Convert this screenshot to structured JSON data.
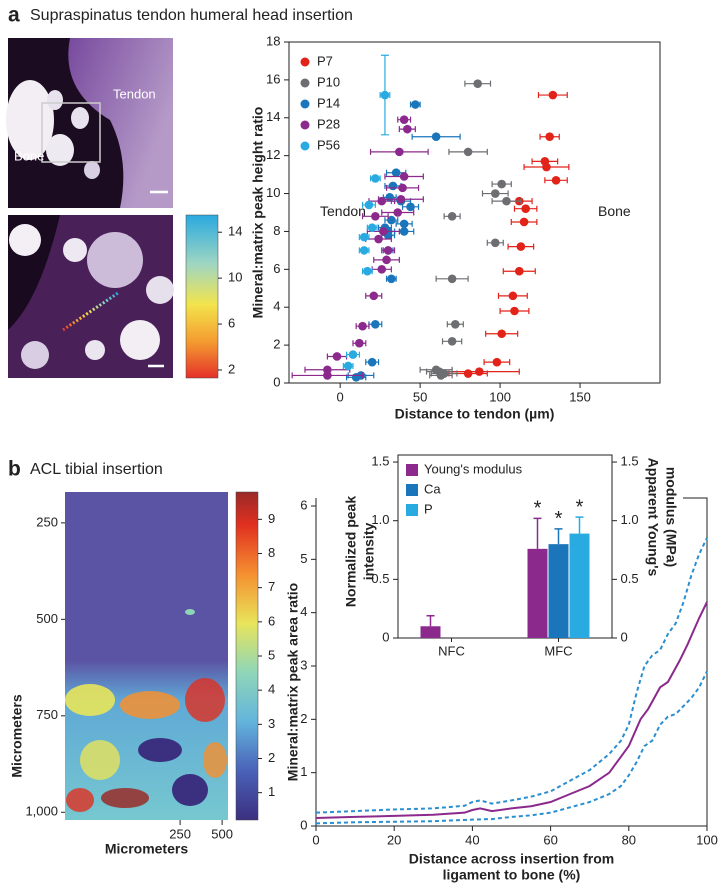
{
  "panels": [
    {
      "label": "a",
      "title": "Supraspinatus tendon humeral head insertion",
      "image_labels": [
        "Tendon",
        "Bone"
      ]
    },
    {
      "label": "b",
      "title": "ACL tibial insertion"
    }
  ],
  "chart_data": [
    {
      "type": "scatter",
      "xlabel": "Distance to tendon (µm)",
      "ylabel": "Mineral:matrix peak height ratio",
      "xlim": [
        -32,
        200
      ],
      "ylim": [
        0,
        18
      ],
      "xticks": [
        0,
        50,
        100,
        150
      ],
      "yticks": [
        0,
        2,
        4,
        6,
        8,
        10,
        12,
        14,
        16,
        18
      ],
      "legend": "upper left",
      "annotations": [
        "Tendon",
        "Bone"
      ],
      "series": [
        {
          "name": "P7",
          "color": "#e2231a",
          "x": [
            133,
            131,
            128,
            129,
            135,
            112,
            116,
            115,
            113,
            112,
            108,
            109,
            101,
            98,
            87,
            80
          ],
          "values": [
            15.2,
            13.0,
            11.7,
            11.4,
            10.7,
            9.6,
            9.2,
            8.5,
            7.2,
            5.9,
            4.6,
            3.8,
            2.6,
            1.1,
            0.6,
            0.5
          ],
          "xerr": [
            9,
            6,
            8,
            14,
            7,
            8,
            7,
            8,
            8,
            10,
            9,
            9,
            10,
            8,
            25,
            12
          ]
        },
        {
          "name": "P10",
          "color": "#6d6e71",
          "x": [
            86,
            80,
            101,
            97,
            104,
            70,
            97,
            70,
            72,
            70,
            60,
            62,
            65,
            63
          ],
          "values": [
            15.8,
            12.2,
            10.5,
            10.0,
            9.6,
            8.8,
            7.4,
            5.5,
            3.1,
            2.2,
            0.7,
            0.6,
            0.5,
            0.4
          ],
          "xerr": [
            8,
            12,
            6,
            8,
            9,
            5,
            5,
            10,
            5,
            6,
            10,
            8,
            8,
            7
          ]
        },
        {
          "name": "P14",
          "color": "#1b75bb",
          "x": [
            47,
            60,
            35,
            33,
            31,
            38,
            44,
            32,
            40,
            30,
            28,
            40,
            30,
            30,
            32,
            22,
            20,
            13,
            10
          ],
          "values": [
            14.7,
            13.0,
            11.1,
            10.4,
            9.8,
            9.6,
            9.3,
            8.6,
            8.4,
            8.0,
            8.2,
            8.0,
            7.8,
            7.0,
            5.5,
            3.1,
            1.1,
            0.4,
            0.3
          ],
          "xerr": [
            3,
            15,
            6,
            5,
            4,
            6,
            5,
            4,
            5,
            4,
            4,
            6,
            4,
            3,
            3,
            4,
            4,
            8,
            6
          ]
        },
        {
          "name": "P28",
          "color": "#8b2a8c",
          "x": [
            40,
            42,
            37,
            40,
            39,
            38,
            26,
            36,
            22,
            27,
            24,
            30,
            29,
            26,
            21,
            14,
            12,
            -2,
            -8,
            -8
          ],
          "values": [
            13.9,
            13.4,
            12.2,
            10.9,
            10.3,
            9.7,
            9.6,
            9.0,
            8.8,
            8.0,
            7.6,
            7.0,
            6.5,
            6.0,
            4.6,
            3.0,
            2.1,
            1.4,
            0.7,
            0.4
          ],
          "xerr": [
            4,
            5,
            18,
            12,
            10,
            14,
            8,
            10,
            8,
            10,
            8,
            4,
            8,
            6,
            5,
            4,
            4,
            6,
            14,
            22
          ]
        },
        {
          "name": "P56",
          "color": "#29abe2",
          "x": [
            28,
            22,
            18,
            20,
            15,
            15,
            17,
            8,
            5
          ],
          "values": [
            15.2,
            10.8,
            9.4,
            8.2,
            7.7,
            7.0,
            5.9,
            1.5,
            0.9
          ],
          "xerr": [
            3,
            3,
            4,
            3,
            3,
            3,
            3,
            4,
            3
          ],
          "yerr": [
            2.1,
            null,
            null,
            null,
            null,
            null,
            null,
            null,
            null
          ]
        }
      ]
    },
    {
      "type": "colorbar",
      "lim": [
        1.3,
        15.5
      ],
      "ticks": [
        2,
        6,
        10,
        14
      ]
    },
    {
      "type": "heatmap",
      "xlabel": "Micrometers",
      "ylabel": "Micrometers",
      "xlim": [
        -435,
        535
      ],
      "ylim": [
        170,
        1020
      ],
      "xticks": [
        250,
        500
      ],
      "yticks": [
        250,
        500,
        750,
        {
          "value": 1000,
          "label": "1,000"
        }
      ],
      "colorbar": {
        "lim": [
          0.2,
          9.8
        ],
        "ticks": [
          1,
          2,
          3,
          4,
          5,
          6,
          7,
          8,
          9
        ]
      }
    },
    {
      "type": "line",
      "xlabel": [
        "Distance across insertion from",
        "ligament to bone (%)"
      ],
      "ylabel": "Mineral:matrix peak area ratio",
      "xlim": [
        0,
        100
      ],
      "ylim": [
        0,
        6.15
      ],
      "xticks": [
        0,
        20,
        40,
        60,
        80,
        100
      ],
      "yticks": [
        0,
        1,
        2,
        3,
        4,
        5,
        6
      ],
      "series": [
        {
          "color": "#2a8fd0",
          "dash": true,
          "x": [
            0,
            10,
            20,
            30,
            38,
            40,
            42,
            45,
            50,
            55,
            60,
            65,
            70,
            75,
            78,
            80,
            82,
            84,
            86,
            88,
            90,
            92,
            94,
            96,
            98,
            100
          ],
          "values": [
            0.25,
            0.28,
            0.31,
            0.33,
            0.38,
            0.45,
            0.48,
            0.42,
            0.48,
            0.55,
            0.65,
            0.85,
            1.05,
            1.35,
            1.6,
            1.9,
            2.5,
            3.0,
            3.2,
            3.3,
            3.6,
            3.8,
            4.2,
            4.7,
            5.1,
            5.4
          ]
        },
        {
          "color": "#8b2a8c",
          "dash": false,
          "x": [
            0,
            10,
            20,
            30,
            38,
            40,
            42,
            45,
            50,
            55,
            60,
            65,
            70,
            75,
            78,
            80,
            83,
            85,
            88,
            90,
            93,
            95,
            98,
            100
          ],
          "values": [
            0.15,
            0.17,
            0.19,
            0.21,
            0.25,
            0.3,
            0.33,
            0.28,
            0.33,
            0.37,
            0.45,
            0.6,
            0.75,
            1.0,
            1.3,
            1.5,
            2.0,
            2.2,
            2.6,
            2.7,
            3.1,
            3.4,
            3.9,
            4.2
          ]
        },
        {
          "color": "#2a8fd0",
          "dash": true,
          "x": [
            0,
            10,
            20,
            30,
            40,
            45,
            50,
            55,
            60,
            65,
            70,
            75,
            78,
            80,
            82,
            84,
            86,
            88,
            90,
            92,
            94,
            96,
            98,
            100
          ],
          "values": [
            0.05,
            0.07,
            0.08,
            0.09,
            0.12,
            0.13,
            0.17,
            0.2,
            0.25,
            0.35,
            0.45,
            0.6,
            0.75,
            0.95,
            1.2,
            1.5,
            1.6,
            1.9,
            2.05,
            2.1,
            2.25,
            2.4,
            2.6,
            2.9
          ]
        }
      ]
    },
    {
      "type": "bar",
      "categories": [
        "NFC",
        "MFC"
      ],
      "ylabel": [
        "Normalized peak",
        "intensity"
      ],
      "y2label": [
        "Apparent Young's",
        "modulus (MPa)"
      ],
      "ylim": [
        0,
        1.56
      ],
      "yticks": [
        0,
        0.5,
        {
          "value": 1,
          "label": "1.0"
        },
        1.5
      ],
      "y2lim": [
        0,
        1.56
      ],
      "y2ticks": [
        0,
        0.5,
        {
          "value": 1,
          "label": "1.0"
        },
        1.5
      ],
      "legend": "upper left",
      "series": [
        {
          "name": "Young's modulus",
          "color": "#8b2a8c",
          "axis": "y2",
          "values": [
            0.1,
            0.76
          ],
          "error": [
            0.09,
            0.26
          ],
          "significance": [
            null,
            "*"
          ]
        },
        {
          "name": "Ca",
          "color": "#1b75bb",
          "values": [
            null,
            0.8
          ],
          "error": [
            null,
            0.13
          ],
          "significance": [
            null,
            "*"
          ]
        },
        {
          "name": "P",
          "color": "#29abe2",
          "values": [
            null,
            0.89
          ],
          "error": [
            null,
            0.14
          ],
          "significance": [
            null,
            "*"
          ]
        }
      ]
    }
  ]
}
